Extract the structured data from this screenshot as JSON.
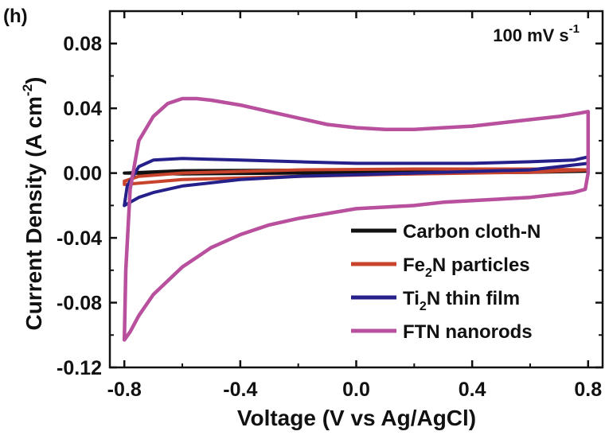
{
  "chart_data": {
    "type": "line",
    "panel_label": "(h)",
    "annotation": {
      "main": "100 mV s",
      "sup": "-1"
    },
    "xlabel": "Voltage (V vs Ag/AgCl)",
    "ylabel": {
      "main": "Current Density (A cm",
      "sup": "-2",
      "close": ")"
    },
    "xlim": [
      -0.85,
      0.85
    ],
    "ylim": [
      -0.12,
      0.1
    ],
    "x_ticks": [
      -0.8,
      -0.4,
      0.0,
      0.4,
      0.8
    ],
    "x_tick_labels": [
      "-0.8",
      "-0.4",
      "0.0",
      "0.4",
      "0.8"
    ],
    "y_ticks": [
      -0.12,
      -0.08,
      -0.04,
      0.0,
      0.04,
      0.08
    ],
    "y_tick_labels": [
      "-0.12",
      "-0.08",
      "-0.04",
      "0.00",
      "0.04",
      "0.08"
    ],
    "grid": false,
    "legend_position": "bottom-right",
    "series": [
      {
        "legend": {
          "main": "Carbon cloth-N",
          "sub": "",
          "rest": ""
        },
        "color": "#111111",
        "points": [
          [
            -0.8,
            0.0
          ],
          [
            -0.6,
            0.0015
          ],
          [
            -0.2,
            0.0018
          ],
          [
            0.2,
            0.0018
          ],
          [
            0.6,
            0.0016
          ],
          [
            0.8,
            0.0012
          ],
          [
            0.6,
            0.0004
          ],
          [
            0.2,
            0.0002
          ],
          [
            -0.2,
            0.0
          ],
          [
            -0.6,
            -0.0005
          ],
          [
            -0.8,
            0.0
          ]
        ]
      },
      {
        "legend": {
          "main": "Fe",
          "sub": "2",
          "rest": "N particles"
        },
        "color": "#c8432b",
        "points": [
          [
            -0.8,
            -0.005
          ],
          [
            -0.75,
            -0.002
          ],
          [
            -0.6,
            0.0
          ],
          [
            -0.2,
            0.002
          ],
          [
            0.2,
            0.0025
          ],
          [
            0.6,
            0.0025
          ],
          [
            0.8,
            0.002
          ],
          [
            0.6,
            0.0005
          ],
          [
            0.2,
            -0.0005
          ],
          [
            -0.2,
            -0.002
          ],
          [
            -0.6,
            -0.004
          ],
          [
            -0.8,
            -0.007
          ],
          [
            -0.8,
            -0.005
          ]
        ]
      },
      {
        "legend": {
          "main": "Ti",
          "sub": "2",
          "rest": "N thin film"
        },
        "color": "#25208a",
        "points": [
          [
            -0.8,
            -0.02
          ],
          [
            -0.79,
            -0.008
          ],
          [
            -0.75,
            0.004
          ],
          [
            -0.7,
            0.008
          ],
          [
            -0.6,
            0.009
          ],
          [
            -0.4,
            0.008
          ],
          [
            -0.2,
            0.007
          ],
          [
            0.0,
            0.006
          ],
          [
            0.2,
            0.006
          ],
          [
            0.4,
            0.006
          ],
          [
            0.6,
            0.007
          ],
          [
            0.75,
            0.008
          ],
          [
            0.8,
            0.01
          ],
          [
            0.8,
            0.006
          ],
          [
            0.75,
            0.005
          ],
          [
            0.6,
            0.002
          ],
          [
            0.4,
            0.001
          ],
          [
            0.2,
            0.0
          ],
          [
            0.0,
            -0.001
          ],
          [
            -0.2,
            -0.002
          ],
          [
            -0.4,
            -0.004
          ],
          [
            -0.6,
            -0.008
          ],
          [
            -0.7,
            -0.012
          ],
          [
            -0.75,
            -0.015
          ],
          [
            -0.8,
            -0.02
          ]
        ]
      },
      {
        "legend": {
          "main": "FTN nanorods",
          "sub": "",
          "rest": ""
        },
        "color": "#b8509e",
        "points": [
          [
            -0.8,
            -0.103
          ],
          [
            -0.795,
            -0.06
          ],
          [
            -0.78,
            -0.01
          ],
          [
            -0.75,
            0.02
          ],
          [
            -0.7,
            0.035
          ],
          [
            -0.65,
            0.043
          ],
          [
            -0.6,
            0.046
          ],
          [
            -0.55,
            0.046
          ],
          [
            -0.5,
            0.045
          ],
          [
            -0.4,
            0.042
          ],
          [
            -0.3,
            0.038
          ],
          [
            -0.2,
            0.034
          ],
          [
            -0.1,
            0.03
          ],
          [
            0.0,
            0.028
          ],
          [
            0.1,
            0.027
          ],
          [
            0.2,
            0.027
          ],
          [
            0.3,
            0.028
          ],
          [
            0.4,
            0.029
          ],
          [
            0.5,
            0.031
          ],
          [
            0.6,
            0.033
          ],
          [
            0.7,
            0.035
          ],
          [
            0.77,
            0.037
          ],
          [
            0.8,
            0.038
          ],
          [
            0.8,
            0.0
          ],
          [
            0.79,
            -0.01
          ],
          [
            0.75,
            -0.012
          ],
          [
            0.7,
            -0.013
          ],
          [
            0.6,
            -0.015
          ],
          [
            0.5,
            -0.016
          ],
          [
            0.4,
            -0.017
          ],
          [
            0.3,
            -0.018
          ],
          [
            0.2,
            -0.02
          ],
          [
            0.0,
            -0.022
          ],
          [
            -0.2,
            -0.028
          ],
          [
            -0.3,
            -0.032
          ],
          [
            -0.4,
            -0.038
          ],
          [
            -0.5,
            -0.046
          ],
          [
            -0.6,
            -0.058
          ],
          [
            -0.7,
            -0.075
          ],
          [
            -0.75,
            -0.088
          ],
          [
            -0.78,
            -0.098
          ],
          [
            -0.8,
            -0.103
          ]
        ]
      }
    ]
  }
}
